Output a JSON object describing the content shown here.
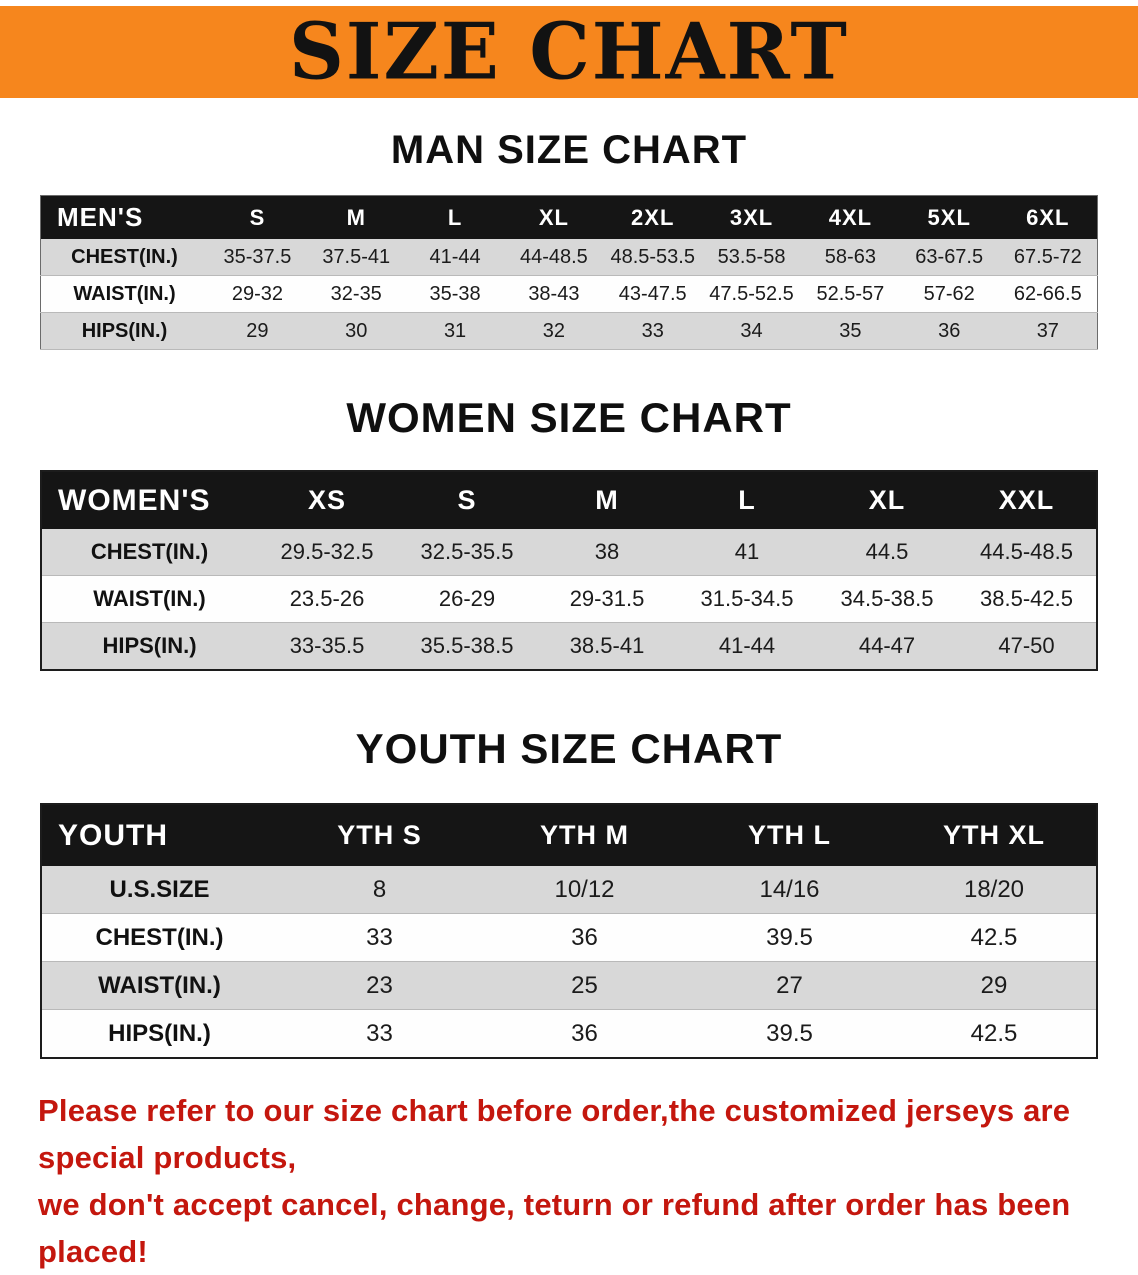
{
  "banner": {
    "title": "SIZE CHART",
    "bg_color": "#f6861d",
    "text_color": "#121212"
  },
  "sections": [
    {
      "heading": "MAN SIZE CHART",
      "table": {
        "header": [
          "MEN'S",
          "S",
          "M",
          "L",
          "XL",
          "2XL",
          "3XL",
          "4XL",
          "5XL",
          "6XL"
        ],
        "rows": [
          [
            "CHEST(IN.)",
            "35-37.5",
            "37.5-41",
            "41-44",
            "44-48.5",
            "48.5-53.5",
            "53.5-58",
            "58-63",
            "63-67.5",
            "67.5-72"
          ],
          [
            "WAIST(IN.)",
            "29-32",
            "32-35",
            "35-38",
            "38-43",
            "43-47.5",
            "47.5-52.5",
            "52.5-57",
            "57-62",
            "62-66.5"
          ],
          [
            "HIPS(IN.)",
            "29",
            "30",
            "31",
            "32",
            "33",
            "34",
            "35",
            "36",
            "37"
          ]
        ]
      }
    },
    {
      "heading": "WOMEN SIZE CHART",
      "table": {
        "header": [
          "WOMEN'S",
          "XS",
          "S",
          "M",
          "L",
          "XL",
          "XXL"
        ],
        "rows": [
          [
            "CHEST(IN.)",
            "29.5-32.5",
            "32.5-35.5",
            "38",
            "41",
            "44.5",
            "44.5-48.5"
          ],
          [
            "WAIST(IN.)",
            "23.5-26",
            "26-29",
            "29-31.5",
            "31.5-34.5",
            "34.5-38.5",
            "38.5-42.5"
          ],
          [
            "HIPS(IN.)",
            "33-35.5",
            "35.5-38.5",
            "38.5-41",
            "41-44",
            "44-47",
            "47-50"
          ]
        ]
      }
    },
    {
      "heading": "YOUTH SIZE CHART",
      "table": {
        "header": [
          "YOUTH",
          "YTH S",
          "YTH M",
          "YTH L",
          "YTH XL"
        ],
        "rows": [
          [
            "U.S.SIZE",
            "8",
            "10/12",
            "14/16",
            "18/20"
          ],
          [
            "CHEST(IN.)",
            "33",
            "36",
            "39.5",
            "42.5"
          ],
          [
            "WAIST(IN.)",
            "23",
            "25",
            "27",
            "29"
          ],
          [
            "HIPS(IN.)",
            "33",
            "36",
            "39.5",
            "42.5"
          ]
        ]
      }
    }
  ],
  "footer": {
    "color": "#c4170e",
    "lines": [
      "Please refer to our size chart before order,the customized jerseys are special products,",
      "we don't accept cancel, change, teturn or refund after order has been placed!"
    ]
  }
}
